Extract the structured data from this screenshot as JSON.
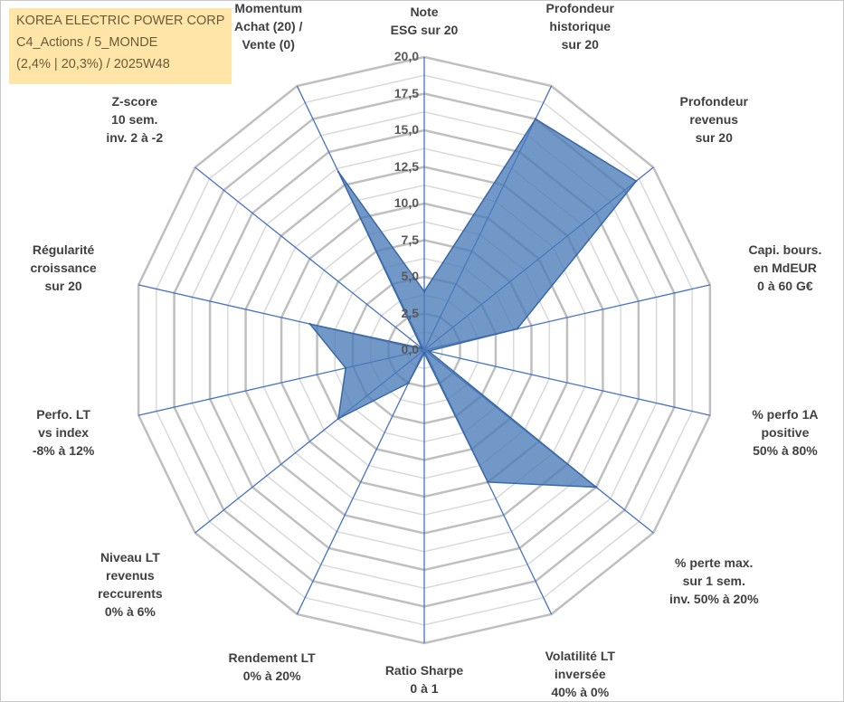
{
  "chart_data": {
    "type": "radar",
    "info": {
      "company": "KOREA ELECTRIC POWER CORP",
      "category": "C4_Actions / 5_MONDE",
      "stats": "(2,4% | 20,3%) / 2025W48"
    },
    "scale": {
      "min": 0,
      "max": 20,
      "step": 2.5
    },
    "tick_labels": [
      "0,0",
      "2,5",
      "5,0",
      "7,5",
      "10,0",
      "12,5",
      "15,0",
      "17,5",
      "20,0"
    ],
    "axes": [
      {
        "label": [
          "Note",
          "ESG sur 20"
        ],
        "value": 4
      },
      {
        "label": [
          "Profondeur",
          "historique",
          "sur 20"
        ],
        "value": 17.5
      },
      {
        "label": [
          "Profondeur",
          "revenus",
          "sur 20"
        ],
        "value": 18.5
      },
      {
        "label": [
          "Capi. bours.",
          "en MdEUR",
          "0 à 60 G€"
        ],
        "value": 6.5
      },
      {
        "label": [
          "% perfo 1A",
          "positive",
          "50% à 80%"
        ],
        "value": 0.3
      },
      {
        "label": [
          "% perte max.",
          "sur 1 sem.",
          "inv. 50% à 20%"
        ],
        "value": 15
      },
      {
        "label": [
          "Volatilité LT",
          "inversée",
          "40% à 0%"
        ],
        "value": 10
      },
      {
        "label": [
          "Ratio Sharpe",
          "0 à 1"
        ],
        "value": 0.2
      },
      {
        "label": [
          "Rendement LT",
          "0% à 20%"
        ],
        "value": 2.5
      },
      {
        "label": [
          "Niveau LT",
          "revenus",
          "reccurents",
          "0% à 6%"
        ],
        "value": 7.5
      },
      {
        "label": [
          "Perfo. LT",
          "vs index",
          "-8% à 12%"
        ],
        "value": 5.5
      },
      {
        "label": [
          "Régularité",
          "croissance",
          "sur 20"
        ],
        "value": 8
      },
      {
        "label": [
          "Z-score",
          "10 sem.",
          "inv. 2 à -2"
        ],
        "value": 0.2
      },
      {
        "label": [
          "Momentum",
          "Achat (20) /",
          "Vente (0)"
        ],
        "value": 13.5
      }
    ],
    "colors": {
      "fill": "#4a7bb7",
      "stroke": "#3a67a8",
      "spoke": "#4472c4",
      "grid_major": "#bfbfbf",
      "grid_minor": "#d9d9d9"
    }
  }
}
